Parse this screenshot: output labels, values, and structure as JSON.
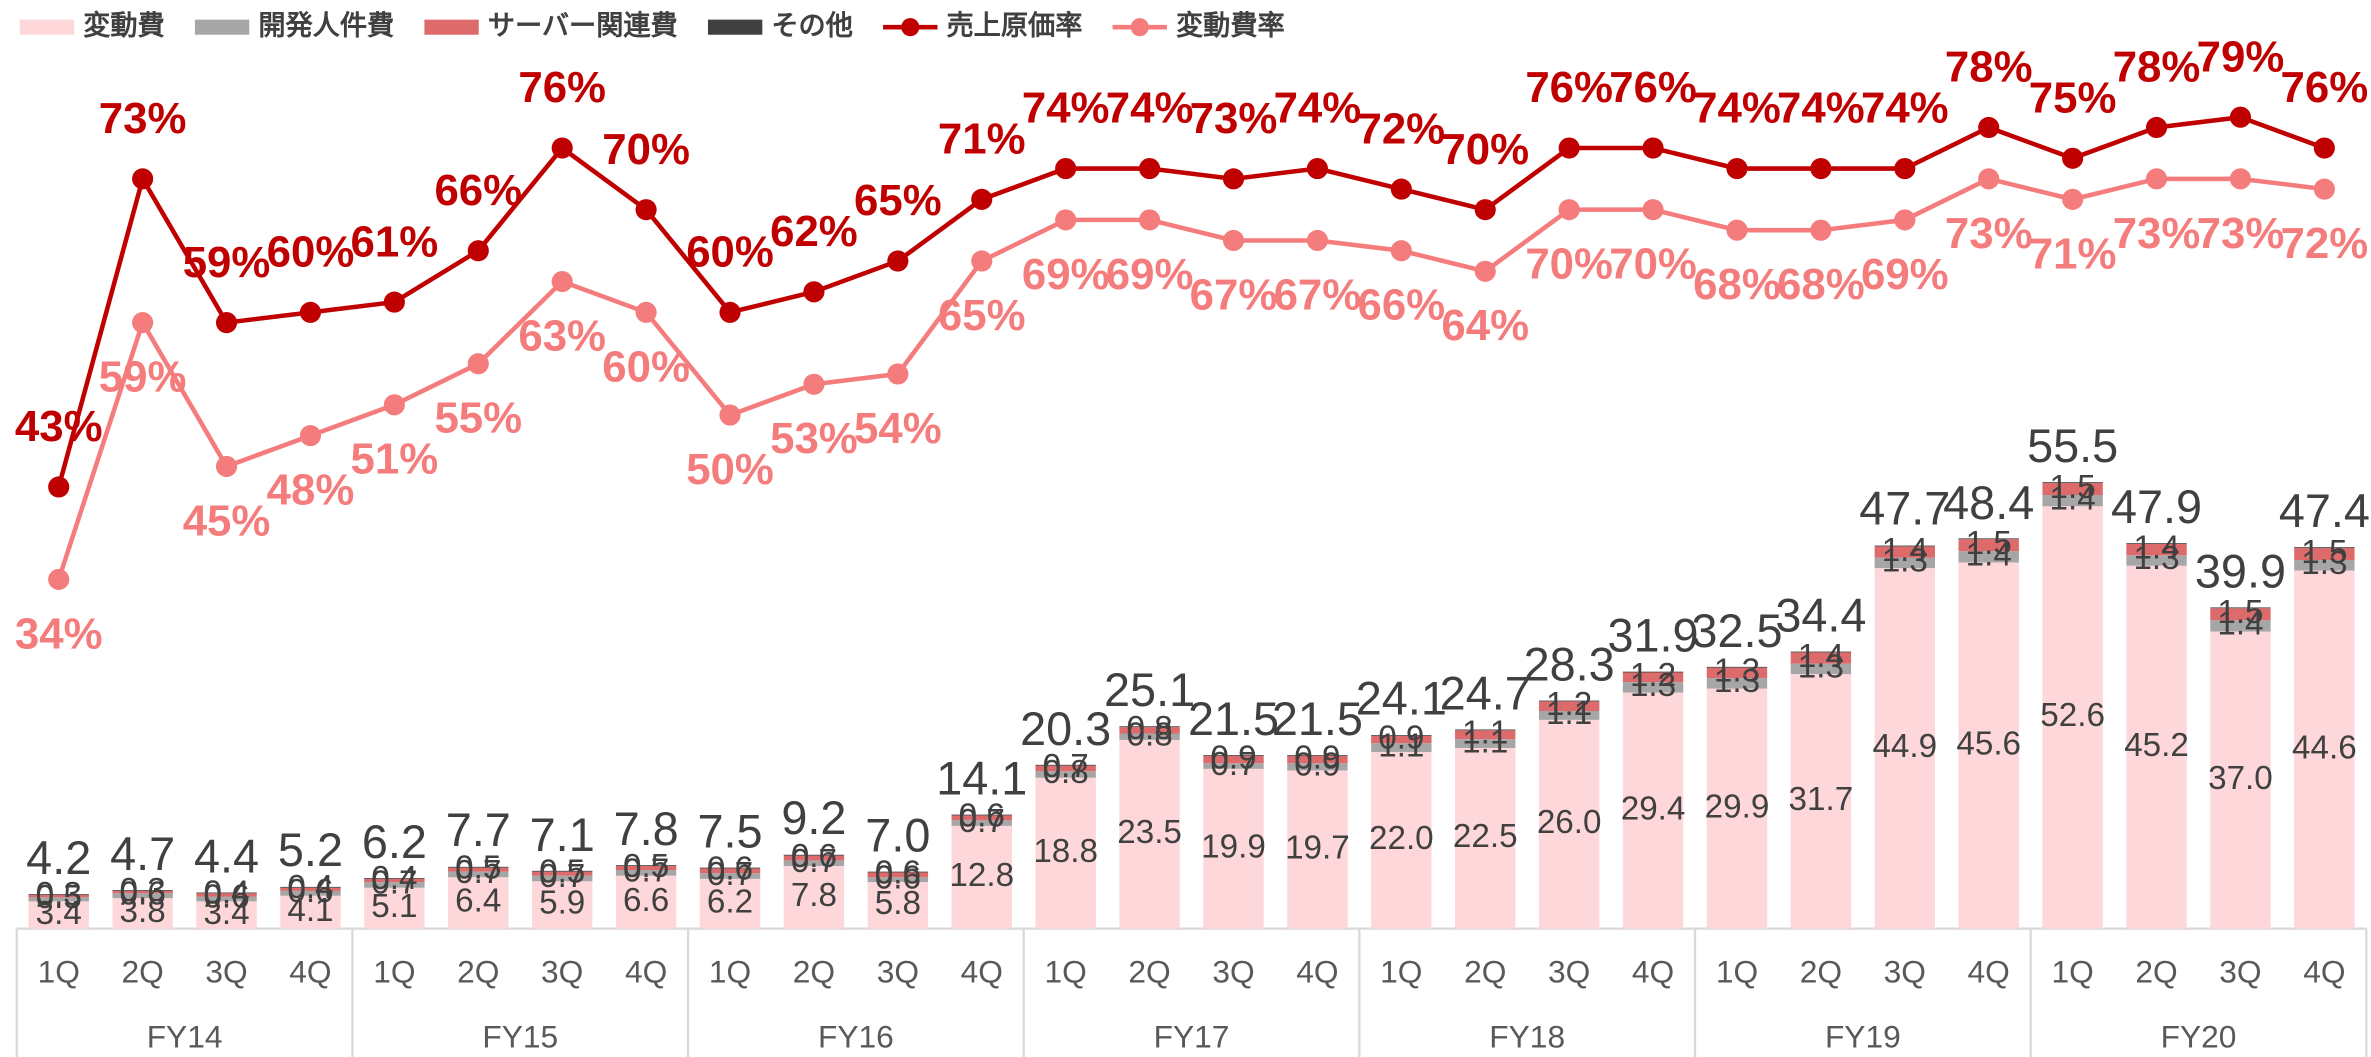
{
  "chart_data": {
    "type": "bar",
    "categories": [
      "1Q",
      "2Q",
      "3Q",
      "4Q",
      "1Q",
      "2Q",
      "3Q",
      "4Q",
      "1Q",
      "2Q",
      "3Q",
      "4Q",
      "1Q",
      "2Q",
      "3Q",
      "4Q",
      "1Q",
      "2Q",
      "3Q",
      "4Q",
      "1Q",
      "2Q",
      "3Q",
      "4Q",
      "1Q",
      "2Q",
      "3Q",
      "4Q"
    ],
    "fiscal_years": [
      "FY14",
      "FY15",
      "FY16",
      "FY17",
      "FY18",
      "FY19",
      "FY20"
    ],
    "ylim": [
      0,
      110
    ],
    "y2lim": [
      0,
      86
    ],
    "series": [
      {
        "name": "変動費",
        "type": "bar",
        "color": "#fdd7d9",
        "values": [
          3.4,
          3.8,
          3.4,
          4.1,
          5.1,
          6.4,
          5.9,
          6.6,
          6.2,
          7.8,
          5.8,
          12.8,
          18.8,
          23.5,
          19.9,
          19.7,
          22.0,
          22.5,
          26.0,
          29.4,
          29.9,
          31.7,
          44.9,
          45.6,
          52.6,
          45.2,
          37.0,
          44.6
        ],
        "value_labels": [
          "3.4",
          "3.8",
          "3.4",
          "4.1",
          "5.1",
          "6.4",
          "5.9",
          "6.6",
          "6.2",
          "7.8",
          "5.8",
          "12.8",
          "18.8",
          "23.5",
          "19.9",
          "19.7",
          "22.0",
          "22.5",
          "26.0",
          "29.4",
          "29.9",
          "31.7",
          "44.9",
          "45.6",
          "52.6",
          "45.2",
          "37.0",
          "44.6"
        ]
      },
      {
        "name": "開発人件費",
        "type": "bar",
        "color": "#a6a6a6",
        "values": [
          0.5,
          0.6,
          0.6,
          0.6,
          0.7,
          0.7,
          0.7,
          0.7,
          0.7,
          0.7,
          0.6,
          0.7,
          0.8,
          0.8,
          0.7,
          0.9,
          1.1,
          1.1,
          1.1,
          1.3,
          1.3,
          1.3,
          1.3,
          1.4,
          1.4,
          1.3,
          1.4,
          1.3
        ],
        "value_labels": [
          "0.5",
          "0.6",
          "0.6",
          "0.6",
          "0.7",
          "0.7",
          "0.7",
          "0.7",
          "0.7",
          "0.7",
          "0.6",
          "0.7",
          "0.8",
          "0.8",
          "0.7",
          "0.9",
          "1.1",
          "1.1",
          "1.1",
          "1.3",
          "1.3",
          "1.3",
          "1.3",
          "1.4",
          "1.4",
          "1.3",
          "1.4",
          "1.3"
        ]
      },
      {
        "name": "サーバー関連費",
        "type": "bar",
        "color": "#de6b6b",
        "values": [
          0.3,
          0.3,
          0.4,
          0.4,
          0.4,
          0.5,
          0.5,
          0.5,
          0.6,
          0.6,
          0.6,
          0.6,
          0.7,
          0.8,
          0.9,
          0.9,
          0.9,
          1.1,
          1.2,
          1.2,
          1.3,
          1.4,
          1.4,
          1.5,
          1.5,
          1.4,
          1.5,
          1.5
        ],
        "value_labels": [
          "0.3",
          "0.3",
          "0.4",
          "0.4",
          "0.4",
          "0.5",
          "0.5",
          "0.5",
          "0.6",
          "0.6",
          "0.6",
          "0.6",
          "0.7",
          "0.8",
          "0.9",
          "0.9",
          "0.9",
          "1.1",
          "1.2",
          "1.2",
          "1.3",
          "1.4",
          "1.4",
          "1.5",
          "1.5",
          "1.4",
          "1.5",
          "1.5"
        ]
      },
      {
        "name": "その他",
        "type": "bar",
        "color": "#404040",
        "values": [
          0.1,
          0.1,
          0.1,
          0.1,
          0.1,
          0.1,
          0.1,
          0.1,
          0.1,
          0.1,
          0.1,
          0.1,
          0.1,
          0.1,
          0.1,
          0.1,
          0.1,
          0.1,
          0.1,
          0.1,
          0.1,
          0.1,
          0.1,
          0.1,
          0.1,
          0.1,
          0.1,
          0.1
        ]
      },
      {
        "name": "売上原価率",
        "type": "line",
        "axis": "y2",
        "color": "#c00000",
        "label_side": "above",
        "values": [
          43,
          73,
          59,
          60,
          61,
          66,
          76,
          70,
          60,
          62,
          65,
          71,
          74,
          74,
          73,
          74,
          72,
          70,
          76,
          76,
          74,
          74,
          74,
          78,
          75,
          78,
          79,
          76
        ],
        "value_labels": [
          "43%",
          "73%",
          "59%",
          "60%",
          "61%",
          "66%",
          "76%",
          "70%",
          "60%",
          "62%",
          "65%",
          "71%",
          "74%",
          "74%",
          "73%",
          "74%",
          "72%",
          "70%",
          "76%",
          "76%",
          "74%",
          "74%",
          "74%",
          "78%",
          "75%",
          "78%",
          "79%",
          "76%"
        ]
      },
      {
        "name": "変動費率",
        "type": "line",
        "axis": "y2",
        "color": "#f47c7c",
        "label_side": "below",
        "values": [
          34,
          59,
          45,
          48,
          51,
          55,
          63,
          60,
          50,
          53,
          54,
          65,
          69,
          69,
          67,
          67,
          66,
          64,
          70,
          70,
          68,
          68,
          69,
          73,
          71,
          73,
          73,
          72
        ],
        "value_labels": [
          "34%",
          "59%",
          "45%",
          "48%",
          "51%",
          "55%",
          "63%",
          "60%",
          "50%",
          "53%",
          "54%",
          "65%",
          "69%",
          "69%",
          "67%",
          "67%",
          "66%",
          "64%",
          "70%",
          "70%",
          "68%",
          "68%",
          "69%",
          "73%",
          "71%",
          "73%",
          "73%",
          "72%"
        ]
      }
    ],
    "totals": [
      4.2,
      4.7,
      4.4,
      5.2,
      6.2,
      7.7,
      7.1,
      7.8,
      7.5,
      9.2,
      7.0,
      14.1,
      20.3,
      25.1,
      21.5,
      21.5,
      24.1,
      24.7,
      28.3,
      31.9,
      32.5,
      34.4,
      47.7,
      48.4,
      55.5,
      47.9,
      39.9,
      47.4
    ],
    "total_labels": [
      "4.2",
      "4.7",
      "4.4",
      "5.2",
      "6.2",
      "7.7",
      "7.1",
      "7.8",
      "7.5",
      "9.2",
      "7.0",
      "14.1",
      "20.3",
      "25.1",
      "21.5",
      "21.5",
      "24.1",
      "24.7",
      "28.3",
      "31.9",
      "32.5",
      "34.4",
      "47.7",
      "48.4",
      "55.5",
      "47.9",
      "39.9",
      "47.4"
    ]
  }
}
